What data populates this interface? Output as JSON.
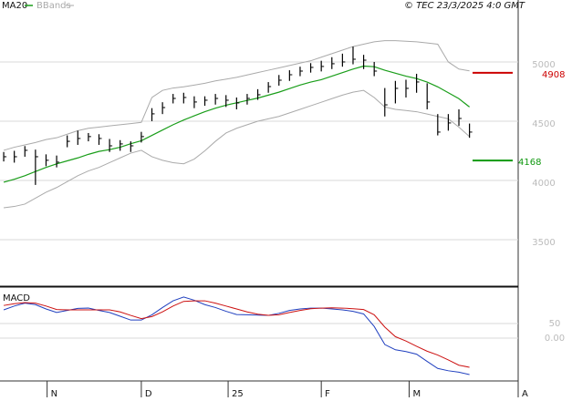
{
  "chart_data": [
    {
      "type": "ohlc",
      "caption": "© TEC 23/3/2025 4:0 GMT",
      "x": [
        0,
        1,
        2,
        3,
        4,
        5,
        6,
        7,
        8,
        9,
        10,
        11,
        12,
        13,
        14,
        15,
        16,
        17,
        18,
        19,
        20,
        21,
        22,
        23,
        24,
        25,
        26,
        27,
        28,
        29,
        30,
        31,
        32,
        33,
        34,
        35,
        36,
        37,
        38,
        39,
        40,
        41,
        42,
        43,
        44
      ],
      "xlim": [
        -0.35,
        48.6
      ],
      "xticks": [
        {
          "value": 4.1,
          "label": "N"
        },
        {
          "value": 13.0,
          "label": "D"
        },
        {
          "value": 21.2,
          "label": "25"
        },
        {
          "value": 30.0,
          "label": "F"
        },
        {
          "value": 38.3,
          "label": "M"
        },
        {
          "value": 48.6,
          "label": "A"
        }
      ],
      "ylim": [
        3115,
        5446
      ],
      "yticks": [
        3500,
        4000,
        4500,
        5000
      ],
      "grid": true,
      "price": {
        "color": "#000000",
        "high": [
          4240,
          4250,
          4290,
          4260,
          4220,
          4210,
          4380,
          4420,
          4400,
          4390,
          4350,
          4340,
          4330,
          4410,
          4610,
          4660,
          4730,
          4740,
          4710,
          4710,
          4730,
          4720,
          4700,
          4730,
          4770,
          4830,
          4890,
          4930,
          4960,
          4990,
          5010,
          5040,
          5070,
          5130,
          5060,
          5000,
          4780,
          4840,
          4850,
          4900,
          4820,
          4560,
          4560,
          4600,
          4480
        ],
        "low": [
          4160,
          4150,
          4200,
          3962,
          4120,
          4110,
          4280,
          4300,
          4330,
          4300,
          4240,
          4250,
          4240,
          4320,
          4500,
          4560,
          4650,
          4650,
          4610,
          4630,
          4640,
          4620,
          4600,
          4640,
          4680,
          4740,
          4800,
          4840,
          4880,
          4910,
          4920,
          4940,
          4960,
          4980,
          4940,
          4880,
          4540,
          4650,
          4700,
          4740,
          4600,
          4380,
          4420,
          4460,
          4360
        ],
        "close": [
          4200,
          4200,
          4254,
          4200,
          4170,
          4154,
          4330,
          4354,
          4370,
          4354,
          4292,
          4308,
          4292,
          4370,
          4562,
          4615,
          4692,
          4700,
          4662,
          4677,
          4692,
          4677,
          4654,
          4692,
          4723,
          4792,
          4846,
          4892,
          4923,
          4954,
          4962,
          4985,
          5000,
          5023,
          5015,
          4923,
          4638,
          4777,
          4777,
          4831,
          4662,
          4408,
          4485,
          4523,
          4408
        ]
      },
      "series": [
        {
          "name": "MA20",
          "color": "#1a9e1a",
          "values": [
            3985,
            4010,
            4040,
            4075,
            4110,
            4140,
            4165,
            4190,
            4220,
            4245,
            4260,
            4280,
            4310,
            4335,
            4380,
            4425,
            4470,
            4510,
            4545,
            4580,
            4610,
            4635,
            4655,
            4675,
            4695,
            4720,
            4745,
            4775,
            4805,
            4830,
            4850,
            4880,
            4910,
            4940,
            4965,
            4960,
            4930,
            4905,
            4880,
            4860,
            4830,
            4790,
            4740,
            4690,
            4620
          ]
        }
      ],
      "bands": {
        "name": "BBands",
        "color": "#aaaaaa",
        "upper": [
          4254,
          4280,
          4300,
          4320,
          4345,
          4360,
          4390,
          4420,
          4440,
          4450,
          4460,
          4470,
          4480,
          4490,
          4700,
          4760,
          4780,
          4790,
          4805,
          4820,
          4840,
          4855,
          4870,
          4890,
          4910,
          4930,
          4950,
          4970,
          4990,
          5010,
          5040,
          5070,
          5100,
          5130,
          5150,
          5170,
          5180,
          5180,
          5175,
          5170,
          5160,
          5150,
          5000,
          4940,
          4925
        ],
        "lower": [
          3769,
          3780,
          3800,
          3850,
          3900,
          3940,
          3990,
          4040,
          4080,
          4110,
          4150,
          4190,
          4230,
          4254,
          4200,
          4170,
          4150,
          4140,
          4180,
          4250,
          4330,
          4400,
          4440,
          4470,
          4500,
          4520,
          4540,
          4570,
          4600,
          4630,
          4660,
          4690,
          4720,
          4745,
          4760,
          4700,
          4620,
          4600,
          4590,
          4580,
          4560,
          4540,
          4520,
          4450,
          4370
        ]
      },
      "levels": [
        {
          "value": 4908,
          "color": "#cc0000"
        },
        {
          "value": 4168,
          "color": "#119911"
        }
      ]
    },
    {
      "type": "line",
      "title": "MACD",
      "ylim": [
        -147,
        172
      ],
      "yticks": [
        50,
        {
          "value": 0,
          "label": "0.00"
        }
      ],
      "series": [
        {
          "color": "#1f3fbf",
          "values": [
            97,
            110,
            120,
            115,
            100,
            88,
            95,
            102,
            103,
            95,
            88,
            75,
            62,
            62,
            80,
            105,
            128,
            141,
            130,
            115,
            105,
            92,
            81,
            80,
            79,
            78,
            85,
            95,
            100,
            103,
            103,
            100,
            97,
            92,
            83,
            40,
            -22,
            -40,
            -46,
            -55,
            -80,
            -104,
            -112,
            -117,
            -125
          ]
        },
        {
          "color": "#cc1111",
          "values": [
            112,
            118,
            122,
            120,
            110,
            98,
            97,
            97,
            97,
            97,
            97,
            90,
            78,
            67,
            74,
            90,
            110,
            126,
            128,
            128,
            120,
            110,
            100,
            90,
            82,
            78,
            80,
            88,
            95,
            101,
            103,
            104,
            103,
            101,
            98,
            80,
            38,
            5,
            -10,
            -28,
            -45,
            -58,
            -75,
            -93,
            -100
          ]
        }
      ]
    }
  ]
}
